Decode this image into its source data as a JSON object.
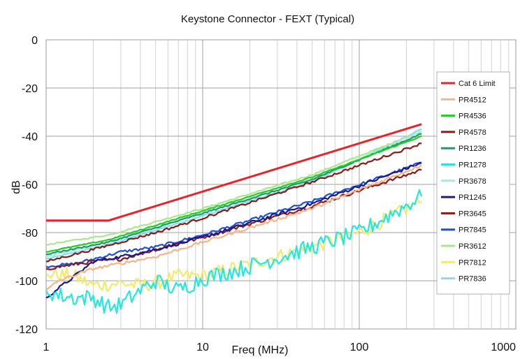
{
  "chart_data": {
    "type": "line",
    "title": "Keystone Connector - FEXT (Typical)",
    "xlabel": "Freq (MHz)",
    "ylabel": "dB",
    "x_scale": "log",
    "xlim": [
      1,
      1000
    ],
    "ylim": [
      -120,
      0
    ],
    "x_ticks": [
      "1",
      "10",
      "100",
      "1000"
    ],
    "y_ticks": [
      "0",
      "-20",
      "-40",
      "-60",
      "-80",
      "-100",
      "-120"
    ],
    "grid": true,
    "legend_position": "right",
    "series": [
      {
        "name": "Cat 6 Limit",
        "color": "#e8232a",
        "noise": 0,
        "x": [
          1,
          2.5,
          250
        ],
        "y": [
          -75,
          -75,
          -35
        ]
      },
      {
        "name": "PR4512",
        "color": "#f6b488",
        "noise": 0.6,
        "x": [
          1,
          1.2,
          2,
          5,
          10,
          50,
          250
        ],
        "y": [
          -104,
          -100,
          -95,
          -90,
          -84,
          -70,
          -52
        ]
      },
      {
        "name": "PR4536",
        "color": "#1fcf1f",
        "noise": 0.2,
        "x": [
          1,
          2.5,
          10,
          50,
          250
        ],
        "y": [
          -88,
          -83,
          -71,
          -57,
          -40
        ]
      },
      {
        "name": "PR4578",
        "color": "#8c1a12",
        "noise": 0.5,
        "x": [
          1,
          2,
          5,
          10,
          50,
          250
        ],
        "y": [
          -92,
          -87,
          -80,
          -74,
          -59,
          -43
        ]
      },
      {
        "name": "PR1236",
        "color": "#1e9a6c",
        "noise": 0.3,
        "x": [
          1,
          2.5,
          10,
          50,
          250
        ],
        "y": [
          -89,
          -84,
          -72,
          -58,
          -39
        ]
      },
      {
        "name": "PR1278",
        "color": "#22e8e0",
        "noise": 3.5,
        "x": [
          1,
          1.2,
          1.5,
          2,
          2.5,
          3,
          4,
          5,
          7,
          10,
          20,
          50,
          100,
          250
        ],
        "y": [
          -104,
          -106,
          -107,
          -107,
          -111,
          -110,
          -104,
          -100,
          -104,
          -99,
          -94,
          -86,
          -80,
          -65
        ]
      },
      {
        "name": "PR3678",
        "color": "#a8ecd8",
        "noise": 0.3,
        "x": [
          1,
          2.5,
          10,
          50,
          250
        ],
        "y": [
          -90,
          -84,
          -72,
          -58,
          -38
        ]
      },
      {
        "name": "PR1245",
        "color": "#1a1a8c",
        "noise": 0.7,
        "x": [
          1,
          1.6,
          2,
          3,
          5,
          10,
          50,
          250
        ],
        "y": [
          -107,
          -97,
          -92,
          -90,
          -87,
          -82,
          -68,
          -51
        ]
      },
      {
        "name": "PR3645",
        "color": "#8a1a1a",
        "noise": 0.7,
        "x": [
          1,
          1.6,
          2,
          3,
          5,
          10,
          50,
          250
        ],
        "y": [
          -95,
          -93,
          -92,
          -91,
          -87,
          -82,
          -69,
          -54
        ]
      },
      {
        "name": "PR7845",
        "color": "#1e4fd8",
        "noise": 0.6,
        "x": [
          1,
          1.5,
          2,
          3,
          5,
          10,
          50,
          250
        ],
        "y": [
          -94,
          -93,
          -91,
          -88,
          -86,
          -81,
          -67,
          -51
        ]
      },
      {
        "name": "PR3612",
        "color": "#a8e890",
        "noise": 0.3,
        "x": [
          1,
          2.5,
          10,
          50,
          250
        ],
        "y": [
          -85,
          -81,
          -70,
          -56,
          -38
        ]
      },
      {
        "name": "PR7812",
        "color": "#f2ea6a",
        "noise": 3.0,
        "x": [
          1,
          1.5,
          2,
          3,
          4,
          5,
          7,
          10,
          20,
          50,
          100,
          250
        ],
        "y": [
          -97,
          -98,
          -102,
          -101,
          -102,
          -101,
          -98,
          -98,
          -93,
          -86,
          -80,
          -67
        ]
      },
      {
        "name": "PR7836",
        "color": "#86dcf0",
        "noise": 0.3,
        "x": [
          1,
          2.5,
          10,
          50,
          250
        ],
        "y": [
          -91,
          -85,
          -73,
          -59,
          -37
        ]
      }
    ]
  }
}
